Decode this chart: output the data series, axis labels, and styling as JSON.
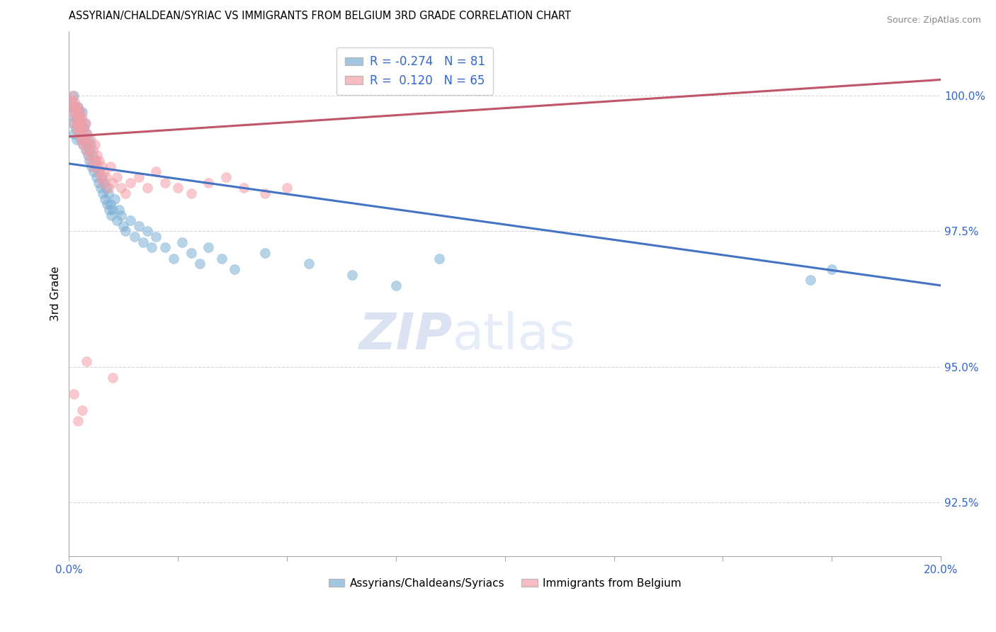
{
  "title": "ASSYRIAN/CHALDEAN/SYRIAC VS IMMIGRANTS FROM BELGIUM 3RD GRADE CORRELATION CHART",
  "source": "Source: ZipAtlas.com",
  "ylabel": "3rd Grade",
  "yticks": [
    92.5,
    95.0,
    97.5,
    100.0
  ],
  "ytick_labels": [
    "92.5%",
    "95.0%",
    "97.5%",
    "100.0%"
  ],
  "xlim": [
    0.0,
    20.0
  ],
  "ylim": [
    91.5,
    101.2
  ],
  "blue_R": -0.274,
  "blue_N": 81,
  "pink_R": 0.12,
  "pink_N": 65,
  "blue_color": "#7BAFD4",
  "pink_color": "#F4A0A8",
  "blue_line_color": "#4472C4",
  "pink_line_color": "#C0556A",
  "watermark_zip": "ZIP",
  "watermark_atlas": "atlas",
  "legend_label_blue": "Assyrians/Chaldeans/Syriacs",
  "legend_label_pink": "Immigrants from Belgium",
  "blue_line_x0": 0.0,
  "blue_line_y0": 98.75,
  "blue_line_x1": 20.0,
  "blue_line_y1": 96.5,
  "pink_line_x0": 0.0,
  "pink_line_y0": 99.25,
  "pink_line_x1": 20.0,
  "pink_line_y1": 100.3,
  "blue_scatter_x": [
    0.05,
    0.07,
    0.08,
    0.1,
    0.1,
    0.12,
    0.13,
    0.15,
    0.15,
    0.17,
    0.18,
    0.2,
    0.2,
    0.22,
    0.23,
    0.25,
    0.25,
    0.27,
    0.28,
    0.3,
    0.3,
    0.32,
    0.33,
    0.35,
    0.37,
    0.38,
    0.4,
    0.42,
    0.43,
    0.45,
    0.47,
    0.48,
    0.5,
    0.52,
    0.55,
    0.57,
    0.6,
    0.62,
    0.65,
    0.67,
    0.7,
    0.72,
    0.75,
    0.77,
    0.8,
    0.82,
    0.85,
    0.87,
    0.9,
    0.92,
    0.95,
    0.97,
    1.0,
    1.05,
    1.1,
    1.15,
    1.2,
    1.25,
    1.3,
    1.4,
    1.5,
    1.6,
    1.7,
    1.8,
    1.9,
    2.0,
    2.2,
    2.4,
    2.6,
    2.8,
    3.0,
    3.2,
    3.5,
    3.8,
    4.5,
    5.5,
    6.5,
    7.5,
    8.5,
    17.0,
    17.5
  ],
  "blue_scatter_y": [
    99.8,
    99.5,
    99.9,
    99.3,
    100.0,
    99.6,
    99.7,
    99.4,
    99.8,
    99.2,
    99.6,
    99.5,
    99.8,
    99.3,
    99.7,
    99.4,
    99.6,
    99.2,
    99.5,
    99.3,
    99.7,
    99.1,
    99.4,
    99.2,
    99.5,
    99.0,
    99.3,
    99.1,
    98.9,
    99.2,
    98.8,
    99.0,
    99.1,
    98.7,
    98.9,
    98.6,
    98.8,
    98.5,
    98.7,
    98.4,
    98.6,
    98.3,
    98.5,
    98.2,
    98.4,
    98.1,
    98.3,
    98.0,
    98.2,
    97.9,
    98.0,
    97.8,
    97.9,
    98.1,
    97.7,
    97.9,
    97.8,
    97.6,
    97.5,
    97.7,
    97.4,
    97.6,
    97.3,
    97.5,
    97.2,
    97.4,
    97.2,
    97.0,
    97.3,
    97.1,
    96.9,
    97.2,
    97.0,
    96.8,
    97.1,
    96.9,
    96.7,
    96.5,
    97.0,
    96.6,
    96.8
  ],
  "pink_scatter_x": [
    0.05,
    0.07,
    0.08,
    0.1,
    0.12,
    0.13,
    0.15,
    0.15,
    0.17,
    0.18,
    0.2,
    0.2,
    0.22,
    0.23,
    0.25,
    0.25,
    0.27,
    0.28,
    0.3,
    0.3,
    0.32,
    0.35,
    0.37,
    0.38,
    0.4,
    0.42,
    0.45,
    0.47,
    0.5,
    0.52,
    0.55,
    0.57,
    0.6,
    0.63,
    0.65,
    0.68,
    0.7,
    0.73,
    0.75,
    0.78,
    0.8,
    0.85,
    0.9,
    0.95,
    1.0,
    1.1,
    1.2,
    1.3,
    1.4,
    1.6,
    1.8,
    2.0,
    2.2,
    2.5,
    2.8,
    3.2,
    3.6,
    4.0,
    4.5,
    5.0,
    0.1,
    0.2,
    0.3,
    1.0,
    0.4
  ],
  "pink_scatter_y": [
    99.9,
    99.7,
    100.0,
    99.8,
    99.5,
    99.9,
    99.6,
    99.8,
    99.4,
    99.7,
    99.5,
    99.8,
    99.3,
    99.6,
    99.4,
    99.7,
    99.2,
    99.5,
    99.3,
    99.6,
    99.1,
    99.4,
    99.2,
    99.5,
    99.0,
    99.3,
    99.1,
    98.9,
    99.2,
    98.8,
    99.0,
    98.7,
    99.1,
    98.8,
    98.9,
    98.6,
    98.8,
    98.5,
    98.7,
    98.4,
    98.6,
    98.5,
    98.3,
    98.7,
    98.4,
    98.5,
    98.3,
    98.2,
    98.4,
    98.5,
    98.3,
    98.6,
    98.4,
    98.3,
    98.2,
    98.4,
    98.5,
    98.3,
    98.2,
    98.3,
    94.5,
    94.0,
    94.2,
    94.8,
    95.1
  ]
}
